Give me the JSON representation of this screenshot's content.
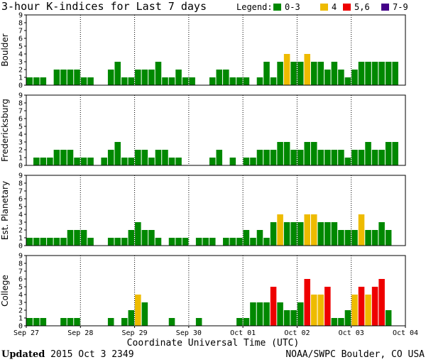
{
  "title": "3-hour K-indices for Last 7 days",
  "legend": {
    "label": "Legend:",
    "items": [
      {
        "label": "0-3",
        "color": "#008800"
      },
      {
        "label": "4",
        "color": "#eebb00"
      },
      {
        "label": "5,6",
        "color": "#ee0000"
      },
      {
        "label": "7-9",
        "color": "#440088"
      }
    ]
  },
  "x_axis_title": "Coordinate Universal Time (UTC)",
  "footer": {
    "updated_label": "Updated",
    "updated_value": "2015 Oct  3 2349",
    "source": "NOAA/SWPC Boulder, CO USA"
  },
  "chart_data": {
    "type": "bar",
    "y_range": [
      0,
      9
    ],
    "y_ticks": [
      0,
      1,
      2,
      3,
      4,
      5,
      6,
      7,
      8,
      9
    ],
    "x_date_labels": [
      "Sep 27",
      "Sep 28",
      "Sep 29",
      "Sep 30",
      "Oct 01",
      "Oct 02",
      "Oct 03",
      "Oct 04"
    ],
    "intervals_per_day": 8,
    "color_scale": [
      {
        "range": "0-3",
        "color": "#008800"
      },
      {
        "range": "4",
        "color": "#eebb00"
      },
      {
        "range": "5,6",
        "color": "#ee0000"
      },
      {
        "range": "7-9",
        "color": "#440088"
      }
    ],
    "panels": [
      {
        "name": "Boulder",
        "values": [
          1,
          1,
          1,
          0,
          2,
          2,
          2,
          2,
          1,
          1,
          0,
          0,
          2,
          3,
          1,
          1,
          2,
          2,
          2,
          3,
          1,
          1,
          2,
          1,
          1,
          0,
          0,
          1,
          2,
          2,
          1,
          1,
          1,
          0,
          1,
          3,
          1,
          3,
          4,
          3,
          3,
          4,
          3,
          3,
          2,
          3,
          2,
          1,
          2,
          3,
          3,
          3,
          3,
          3,
          3,
          0,
          0
        ]
      },
      {
        "name": "Fredericksburg",
        "values": [
          0,
          1,
          1,
          1,
          2,
          2,
          2,
          1,
          1,
          1,
          0,
          1,
          2,
          3,
          1,
          1,
          2,
          2,
          1,
          2,
          2,
          1,
          1,
          0,
          0,
          0,
          0,
          1,
          2,
          0,
          1,
          0,
          1,
          1,
          2,
          2,
          2,
          3,
          3,
          2,
          2,
          3,
          3,
          2,
          2,
          2,
          2,
          1,
          2,
          2,
          3,
          2,
          2,
          3,
          3,
          0,
          0
        ]
      },
      {
        "name": "Est. Planetary",
        "values": [
          1,
          1,
          1,
          1,
          1,
          1,
          2,
          2,
          2,
          1,
          0,
          0,
          1,
          1,
          1,
          2,
          3,
          2,
          2,
          1,
          0,
          1,
          1,
          1,
          0,
          1,
          1,
          1,
          0,
          1,
          1,
          1,
          2,
          1,
          2,
          1,
          3,
          4,
          3,
          3,
          3,
          4,
          4,
          3,
          3,
          3,
          2,
          2,
          2,
          4,
          2,
          2,
          3,
          2,
          0
        ]
      },
      {
        "name": "College",
        "values": [
          1,
          1,
          1,
          0,
          0,
          1,
          1,
          1,
          0,
          0,
          0,
          0,
          1,
          0,
          1,
          2,
          4,
          3,
          0,
          0,
          0,
          1,
          0,
          0,
          0,
          1,
          0,
          0,
          0,
          0,
          0,
          1,
          1,
          3,
          3,
          3,
          5,
          3,
          2,
          2,
          3,
          6,
          4,
          4,
          5,
          1,
          1,
          2,
          4,
          5,
          4,
          5,
          6,
          2,
          0
        ]
      }
    ]
  }
}
